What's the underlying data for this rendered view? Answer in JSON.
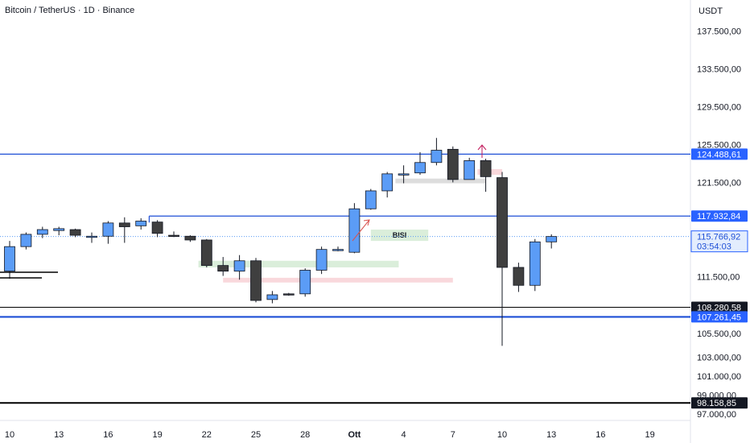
{
  "chart_data": {
    "type": "candlestick",
    "title": "Bitcoin / TetherUS · 1D · Binance",
    "currency": "USDT",
    "ylim": [
      96300,
      140800
    ],
    "y_ticks": [
      "137.500,00",
      "133.500,00",
      "129.500,00",
      "125.500,00",
      "121.500,00",
      "111.500,00",
      "105.500,00",
      "103.000,00",
      "101.000,00",
      "99.000,00",
      "97.000,00"
    ],
    "y_tick_values": [
      137500,
      133500,
      129500,
      125500,
      121500,
      111500,
      105500,
      103000,
      101000,
      99000,
      97000
    ],
    "x_ticks": [
      "10",
      "13",
      "16",
      "19",
      "22",
      "25",
      "28",
      "Ott",
      "4",
      "7",
      "10",
      "13",
      "16",
      "19"
    ],
    "x_tick_days": [
      0,
      3,
      6,
      9,
      12,
      15,
      18,
      21,
      24,
      27,
      30,
      33,
      36,
      39
    ],
    "colors": {
      "up": "#5b9cf6",
      "down": "#3f3f3f",
      "blue_line": "#1e4fd6",
      "black_line": "#000000",
      "green_zone": "#d6ecd6",
      "red_zone": "#f8d4d8",
      "grey_zone": "#d9d9d9",
      "badge_blue": "#2962ff",
      "badge_black": "#131722"
    },
    "candles": [
      {
        "d": 0,
        "o": 112100,
        "h": 115300,
        "l": 111300,
        "c": 114700
      },
      {
        "d": 1,
        "o": 114700,
        "h": 116200,
        "l": 114400,
        "c": 116000
      },
      {
        "d": 2,
        "o": 116000,
        "h": 116800,
        "l": 115600,
        "c": 116500
      },
      {
        "d": 3,
        "o": 116400,
        "h": 116800,
        "l": 115900,
        "c": 116600
      },
      {
        "d": 4,
        "o": 116500,
        "h": 116600,
        "l": 115700,
        "c": 115900
      },
      {
        "d": 5,
        "o": 115800,
        "h": 116200,
        "l": 115100,
        "c": 115800
      },
      {
        "d": 6,
        "o": 115800,
        "h": 117400,
        "l": 115000,
        "c": 117200
      },
      {
        "d": 7,
        "o": 117200,
        "h": 117800,
        "l": 115100,
        "c": 116800
      },
      {
        "d": 8,
        "o": 116900,
        "h": 117700,
        "l": 116500,
        "c": 117400
      },
      {
        "d": 9,
        "o": 117300,
        "h": 117500,
        "l": 115700,
        "c": 116100
      },
      {
        "d": 10,
        "o": 115900,
        "h": 116300,
        "l": 115700,
        "c": 115800
      },
      {
        "d": 11,
        "o": 115800,
        "h": 115900,
        "l": 115200,
        "c": 115400
      },
      {
        "d": 12,
        "o": 115400,
        "h": 115500,
        "l": 112500,
        "c": 112700
      },
      {
        "d": 13,
        "o": 112700,
        "h": 113600,
        "l": 111600,
        "c": 112100
      },
      {
        "d": 14,
        "o": 112100,
        "h": 113800,
        "l": 111200,
        "c": 113200
      },
      {
        "d": 15,
        "o": 113200,
        "h": 113500,
        "l": 108800,
        "c": 109000
      },
      {
        "d": 16,
        "o": 109100,
        "h": 110000,
        "l": 108700,
        "c": 109600
      },
      {
        "d": 17,
        "o": 109700,
        "h": 109800,
        "l": 109500,
        "c": 109600
      },
      {
        "d": 18,
        "o": 109700,
        "h": 112400,
        "l": 109400,
        "c": 112200
      },
      {
        "d": 19,
        "o": 112200,
        "h": 114700,
        "l": 111800,
        "c": 114400
      },
      {
        "d": 20,
        "o": 114300,
        "h": 114700,
        "l": 114200,
        "c": 114400
      },
      {
        "d": 21,
        "o": 114100,
        "h": 119300,
        "l": 114000,
        "c": 118700
      },
      {
        "d": 22,
        "o": 118700,
        "h": 120800,
        "l": 118600,
        "c": 120600
      },
      {
        "d": 23,
        "o": 120600,
        "h": 122600,
        "l": 119900,
        "c": 122400
      },
      {
        "d": 24,
        "o": 122300,
        "h": 123300,
        "l": 121400,
        "c": 122400
      },
      {
        "d": 25,
        "o": 122500,
        "h": 124700,
        "l": 122300,
        "c": 123600
      },
      {
        "d": 26,
        "o": 123600,
        "h": 126200,
        "l": 123300,
        "c": 124900
      },
      {
        "d": 27,
        "o": 125000,
        "h": 125300,
        "l": 121500,
        "c": 121800
      },
      {
        "d": 28,
        "o": 121800,
        "h": 124100,
        "l": 121800,
        "c": 123800
      },
      {
        "d": 29,
        "o": 123800,
        "h": 124000,
        "l": 120500,
        "c": 122100
      },
      {
        "d": 30,
        "o": 122000,
        "h": 122600,
        "l": 104200,
        "c": 112500
      },
      {
        "d": 31,
        "o": 112500,
        "h": 113000,
        "l": 109900,
        "c": 110600
      },
      {
        "d": 32,
        "o": 110600,
        "h": 115500,
        "l": 110000,
        "c": 115200
      },
      {
        "d": 33,
        "o": 115200,
        "h": 116000,
        "l": 114500,
        "c": 115767
      }
    ],
    "h_lines": [
      {
        "y": 124488.61,
        "style": "blue",
        "label": "124.488,61"
      },
      {
        "y": 117932.84,
        "style": "blue",
        "label": "117.932,84",
        "x_start_day": 8.5
      },
      {
        "y": 108280.58,
        "style": "black_thin",
        "label": "108.280,58"
      },
      {
        "y": 107261.45,
        "style": "blue_thick",
        "label": "107.261,45"
      },
      {
        "y": 98158.85,
        "style": "black_thick",
        "label": "98.158,85"
      }
    ],
    "last_price": {
      "label": "115.766,92",
      "countdown": "03:54:03",
      "y": 115766.92
    },
    "zones": [
      {
        "color": "green_zone",
        "d1": 11.5,
        "d2": 23.7,
        "y1": 112500,
        "y2": 113200
      },
      {
        "color": "green_zone",
        "d1": 22.0,
        "d2": 25.5,
        "y1": 115300,
        "y2": 116500,
        "label": "BISI"
      },
      {
        "color": "red_zone",
        "d1": 13.0,
        "d2": 27.0,
        "y1": 110900,
        "y2": 111400
      },
      {
        "color": "grey_zone",
        "d1": 23.5,
        "d2": 29.0,
        "y1": 121400,
        "y2": 121900
      },
      {
        "color": "red_zone",
        "d1": 28.5,
        "d2": 30.0,
        "y1": 122300,
        "y2": 122900
      }
    ],
    "grid": false,
    "legend": "none"
  }
}
